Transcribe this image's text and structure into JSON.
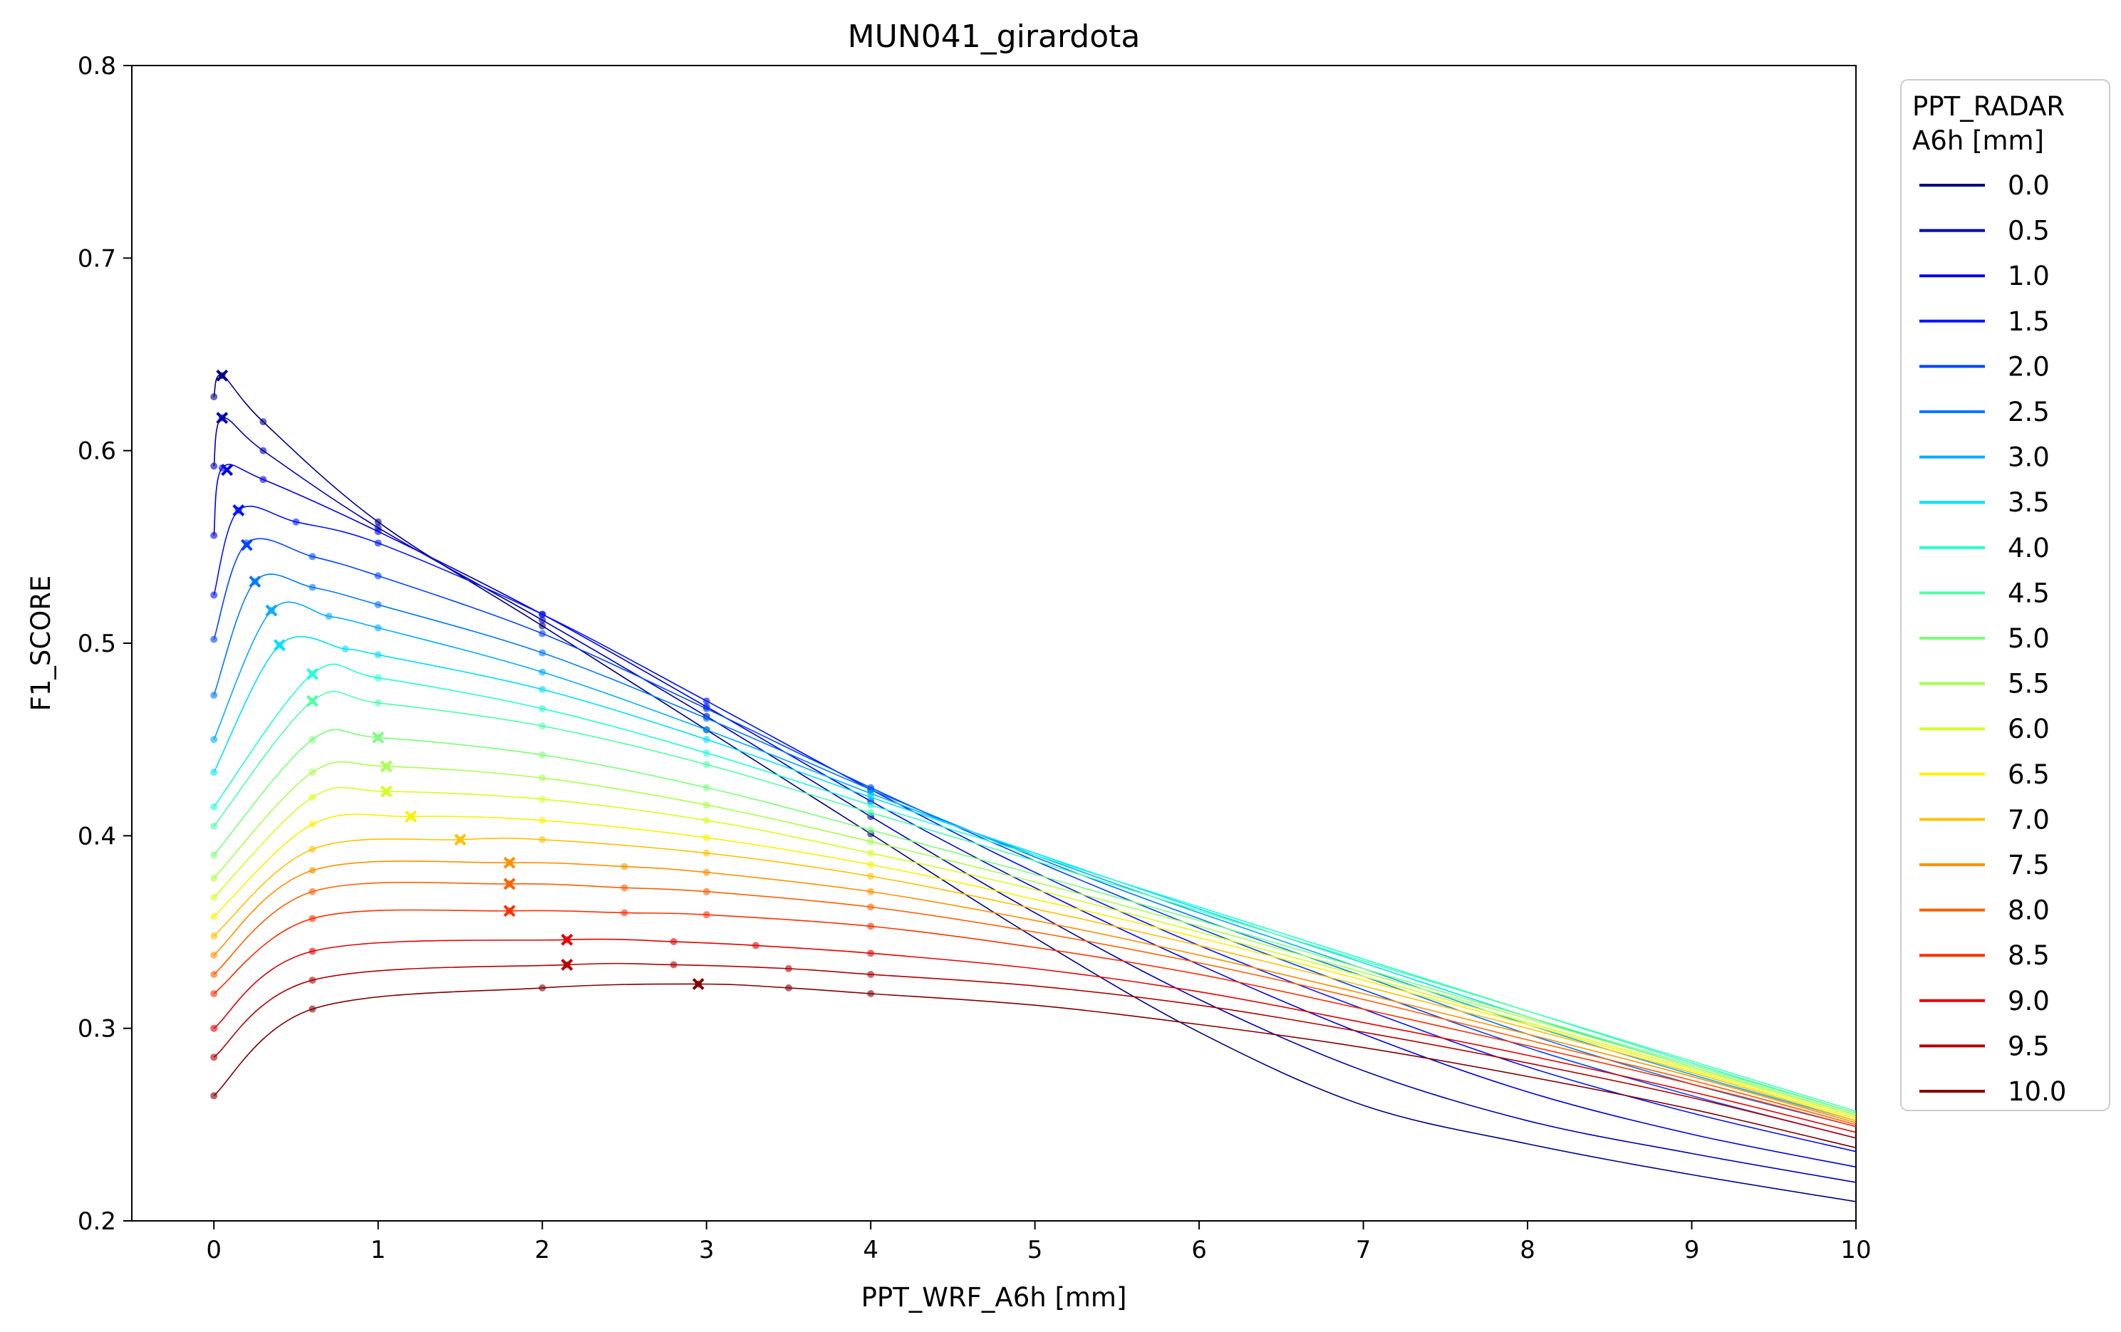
{
  "chart_data": {
    "type": "line",
    "title": "MUN041_girardota",
    "xlabel": "PPT_WRF_A6h [mm]",
    "ylabel": "F1_SCORE",
    "xlim": [
      -0.5,
      10
    ],
    "ylim": [
      0.2,
      0.8
    ],
    "xticks": [
      "0",
      "1",
      "2",
      "3",
      "4",
      "5",
      "6",
      "7",
      "8",
      "9",
      "10"
    ],
    "yticks": [
      "0.2",
      "0.3",
      "0.4",
      "0.5",
      "0.6",
      "0.7",
      "0.8"
    ],
    "grid": false,
    "legend": {
      "title_line1": "PPT_RADAR",
      "title_line2": "A6h [mm]",
      "placement": "outside-right"
    },
    "series": [
      {
        "name": "0.0",
        "color": "#000080",
        "x": [
          0,
          0.05,
          0.3,
          1,
          2,
          3,
          4,
          5,
          6,
          7,
          8,
          9,
          10
        ],
        "y": [
          0.628,
          0.639,
          0.615,
          0.563,
          0.509,
          0.455,
          0.401,
          0.347,
          0.298,
          0.26,
          0.24,
          0.224,
          0.21
        ],
        "best": [
          0.05,
          0.639
        ]
      },
      {
        "name": "0.5",
        "color": "#0000b2",
        "x": [
          0,
          0.05,
          0.3,
          1,
          2,
          3,
          4,
          5,
          6,
          7,
          8,
          9,
          10
        ],
        "y": [
          0.592,
          0.617,
          0.6,
          0.56,
          0.512,
          0.462,
          0.41,
          0.36,
          0.315,
          0.278,
          0.252,
          0.235,
          0.22
        ],
        "best": [
          0.05,
          0.617
        ]
      },
      {
        "name": "1.0",
        "color": "#0000e3",
        "x": [
          0,
          0.05,
          0.3,
          1,
          2,
          3,
          4,
          5,
          6,
          7,
          8,
          9,
          10
        ],
        "y": [
          0.556,
          0.591,
          0.585,
          0.558,
          0.515,
          0.467,
          0.418,
          0.373,
          0.333,
          0.297,
          0.267,
          0.245,
          0.228
        ],
        "best": [
          0.08,
          0.59
        ]
      },
      {
        "name": "1.5",
        "color": "#0014ff",
        "x": [
          0,
          0.15,
          0.5,
          1,
          2,
          3,
          4,
          5,
          6,
          7,
          8,
          9,
          10
        ],
        "y": [
          0.525,
          0.569,
          0.563,
          0.552,
          0.515,
          0.47,
          0.424,
          0.381,
          0.343,
          0.31,
          0.28,
          0.256,
          0.236
        ],
        "best": [
          0.15,
          0.569
        ]
      },
      {
        "name": "2.0",
        "color": "#0044ff",
        "x": [
          0,
          0.2,
          0.6,
          1,
          2,
          3,
          4,
          5,
          6,
          7,
          8,
          9,
          10
        ],
        "y": [
          0.502,
          0.552,
          0.545,
          0.535,
          0.505,
          0.466,
          0.425,
          0.387,
          0.352,
          0.32,
          0.29,
          0.265,
          0.243
        ],
        "best": [
          0.2,
          0.551
        ]
      },
      {
        "name": "2.5",
        "color": "#0078ff",
        "x": [
          0,
          0.25,
          0.6,
          1,
          2,
          3,
          4,
          5,
          6,
          7,
          8,
          9,
          10
        ],
        "y": [
          0.473,
          0.532,
          0.529,
          0.52,
          0.495,
          0.461,
          0.424,
          0.389,
          0.357,
          0.327,
          0.297,
          0.271,
          0.249
        ],
        "best": [
          0.25,
          0.532
        ]
      },
      {
        "name": "3.0",
        "color": "#00acff",
        "x": [
          0,
          0.35,
          0.7,
          1,
          2,
          3,
          4,
          5,
          6,
          7,
          8,
          9,
          10
        ],
        "y": [
          0.45,
          0.517,
          0.514,
          0.508,
          0.485,
          0.455,
          0.422,
          0.39,
          0.36,
          0.331,
          0.302,
          0.276,
          0.252
        ],
        "best": [
          0.35,
          0.517
        ]
      },
      {
        "name": "3.5",
        "color": "#00e0fb",
        "x": [
          0,
          0.4,
          0.8,
          1,
          2,
          3,
          4,
          5,
          6,
          7,
          8,
          9,
          10
        ],
        "y": [
          0.433,
          0.499,
          0.497,
          0.494,
          0.476,
          0.45,
          0.42,
          0.391,
          0.362,
          0.334,
          0.306,
          0.28,
          0.255
        ],
        "best": [
          0.4,
          0.499
        ]
      },
      {
        "name": "4.0",
        "color": "#22ffd4",
        "x": [
          0,
          0.6,
          1,
          2,
          3,
          4,
          5,
          6,
          7,
          8,
          9,
          10
        ],
        "y": [
          0.415,
          0.484,
          0.482,
          0.466,
          0.443,
          0.416,
          0.39,
          0.363,
          0.336,
          0.309,
          0.282,
          0.256
        ],
        "best": [
          0.6,
          0.484
        ]
      },
      {
        "name": "4.5",
        "color": "#4effa9",
        "x": [
          0,
          0.6,
          1,
          2,
          3,
          4,
          5,
          6,
          7,
          8,
          9,
          10
        ],
        "y": [
          0.405,
          0.47,
          0.469,
          0.457,
          0.437,
          0.412,
          0.387,
          0.361,
          0.335,
          0.309,
          0.283,
          0.257
        ],
        "best": [
          0.6,
          0.47
        ]
      },
      {
        "name": "5.0",
        "color": "#7bff7b",
        "x": [
          0,
          0.6,
          1.0,
          2,
          3,
          4,
          5,
          6,
          7,
          8,
          9,
          10
        ],
        "y": [
          0.39,
          0.45,
          0.451,
          0.442,
          0.425,
          0.403,
          0.38,
          0.356,
          0.331,
          0.306,
          0.281,
          0.256
        ],
        "best": [
          1.0,
          0.451
        ]
      },
      {
        "name": "5.5",
        "color": "#a9ff4e",
        "x": [
          0,
          0.6,
          1.05,
          2,
          3,
          4,
          5,
          6,
          7,
          8,
          9,
          10
        ],
        "y": [
          0.378,
          0.433,
          0.436,
          0.43,
          0.416,
          0.397,
          0.376,
          0.353,
          0.329,
          0.305,
          0.28,
          0.255
        ],
        "best": [
          1.05,
          0.436
        ]
      },
      {
        "name": "6.0",
        "color": "#d4ff22",
        "x": [
          0,
          0.6,
          1.05,
          2,
          3,
          4,
          5,
          6,
          7,
          8,
          9,
          10
        ],
        "y": [
          0.368,
          0.42,
          0.423,
          0.419,
          0.408,
          0.391,
          0.372,
          0.35,
          0.327,
          0.303,
          0.279,
          0.254
        ],
        "best": [
          1.05,
          0.423
        ]
      },
      {
        "name": "6.5",
        "color": "#fbf100",
        "x": [
          0,
          0.6,
          1.2,
          2,
          3,
          4,
          5,
          6,
          7,
          8,
          9,
          10
        ],
        "y": [
          0.358,
          0.406,
          0.41,
          0.408,
          0.399,
          0.385,
          0.367,
          0.347,
          0.325,
          0.302,
          0.278,
          0.253
        ],
        "best": [
          1.2,
          0.41
        ]
      },
      {
        "name": "7.0",
        "color": "#ffc100",
        "x": [
          0,
          0.6,
          1.5,
          2,
          3,
          4,
          5,
          6,
          7,
          8,
          9,
          10
        ],
        "y": [
          0.348,
          0.393,
          0.398,
          0.398,
          0.391,
          0.379,
          0.362,
          0.343,
          0.322,
          0.3,
          0.277,
          0.252
        ],
        "best": [
          1.5,
          0.398
        ]
      },
      {
        "name": "7.5",
        "color": "#ff9000",
        "x": [
          0,
          0.6,
          1.8,
          2.5,
          3,
          4,
          5,
          6,
          7,
          8,
          9,
          10
        ],
        "y": [
          0.338,
          0.382,
          0.386,
          0.384,
          0.381,
          0.371,
          0.356,
          0.338,
          0.318,
          0.297,
          0.275,
          0.251
        ],
        "best": [
          1.8,
          0.386
        ]
      },
      {
        "name": "8.0",
        "color": "#ff5f00",
        "x": [
          0,
          0.6,
          1.8,
          2.5,
          3,
          4,
          5,
          6,
          7,
          8,
          9,
          10
        ],
        "y": [
          0.328,
          0.371,
          0.375,
          0.373,
          0.371,
          0.363,
          0.35,
          0.334,
          0.315,
          0.294,
          0.273,
          0.25
        ],
        "best": [
          1.8,
          0.375
        ]
      },
      {
        "name": "8.5",
        "color": "#ff2f00",
        "x": [
          0,
          0.6,
          1.8,
          2.5,
          3,
          4,
          5,
          6,
          7,
          8,
          9,
          10
        ],
        "y": [
          0.318,
          0.357,
          0.361,
          0.36,
          0.359,
          0.353,
          0.342,
          0.328,
          0.31,
          0.291,
          0.271,
          0.249
        ],
        "best": [
          1.8,
          0.361
        ]
      },
      {
        "name": "9.0",
        "color": "#e30000",
        "x": [
          0,
          0.6,
          2.15,
          2.8,
          3.3,
          4,
          5,
          6,
          7,
          8,
          9,
          10
        ],
        "y": [
          0.3,
          0.34,
          0.346,
          0.345,
          0.343,
          0.339,
          0.331,
          0.319,
          0.303,
          0.286,
          0.267,
          0.246
        ],
        "best": [
          2.15,
          0.346
        ]
      },
      {
        "name": "9.5",
        "color": "#b20000",
        "x": [
          0,
          0.6,
          2.15,
          2.8,
          3.5,
          4,
          5,
          6,
          7,
          8,
          9,
          10
        ],
        "y": [
          0.285,
          0.325,
          0.333,
          0.333,
          0.331,
          0.328,
          0.322,
          0.312,
          0.298,
          0.282,
          0.264,
          0.243
        ],
        "best": [
          2.15,
          0.333
        ]
      },
      {
        "name": "10.0",
        "color": "#800000",
        "x": [
          0,
          0.6,
          2,
          2.95,
          3.5,
          4,
          5,
          6,
          7,
          8,
          9,
          10
        ],
        "y": [
          0.265,
          0.31,
          0.321,
          0.323,
          0.321,
          0.318,
          0.312,
          0.302,
          0.29,
          0.275,
          0.258,
          0.238
        ],
        "best": [
          2.95,
          0.323
        ]
      }
    ]
  }
}
